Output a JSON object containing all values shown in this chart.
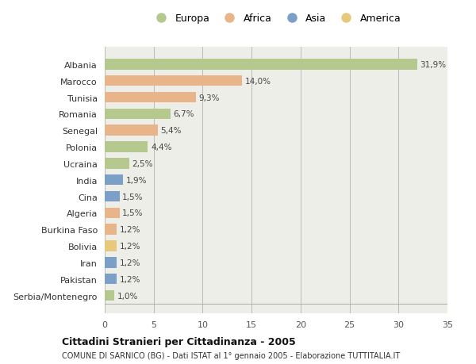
{
  "countries": [
    "Albania",
    "Marocco",
    "Tunisia",
    "Romania",
    "Senegal",
    "Polonia",
    "Ucraina",
    "India",
    "Cina",
    "Algeria",
    "Burkina Faso",
    "Bolivia",
    "Iran",
    "Pakistan",
    "Serbia/Montenegro"
  ],
  "values": [
    31.9,
    14.0,
    9.3,
    6.7,
    5.4,
    4.4,
    2.5,
    1.9,
    1.5,
    1.5,
    1.2,
    1.2,
    1.2,
    1.2,
    1.0
  ],
  "labels": [
    "31,9%",
    "14,0%",
    "9,3%",
    "6,7%",
    "5,4%",
    "4,4%",
    "2,5%",
    "1,9%",
    "1,5%",
    "1,5%",
    "1,2%",
    "1,2%",
    "1,2%",
    "1,2%",
    "1,0%"
  ],
  "colors": [
    "#b5c98e",
    "#e8b48a",
    "#e8b48a",
    "#b5c98e",
    "#e8b48a",
    "#b5c98e",
    "#b5c98e",
    "#7b9fc7",
    "#7b9fc7",
    "#e8b48a",
    "#e8b48a",
    "#e8c87b",
    "#7b9fc7",
    "#7b9fc7",
    "#b5c98e"
  ],
  "legend_labels": [
    "Europa",
    "Africa",
    "Asia",
    "America"
  ],
  "legend_colors": [
    "#b5c98e",
    "#e8b48a",
    "#7b9fc7",
    "#e8c87b"
  ],
  "title": "Cittadini Stranieri per Cittadinanza - 2005",
  "subtitle": "COMUNE DI SARNICO (BG) - Dati ISTAT al 1° gennaio 2005 - Elaborazione TUTTITALIA.IT",
  "xlim": [
    0,
    35
  ],
  "xticks": [
    0,
    5,
    10,
    15,
    20,
    25,
    30,
    35
  ],
  "fig_bg_color": "#ffffff",
  "plot_bg_color": "#eeeee8"
}
